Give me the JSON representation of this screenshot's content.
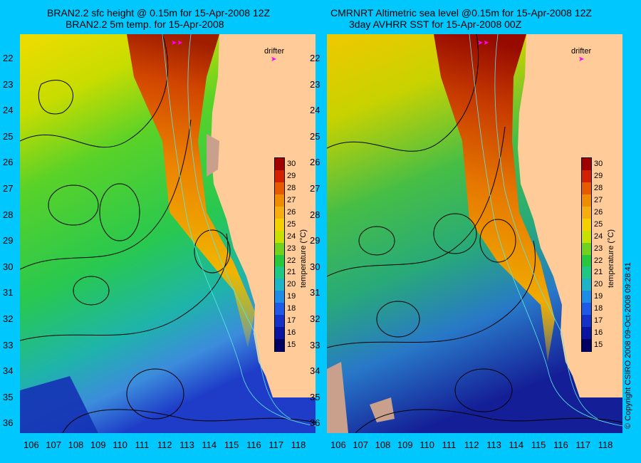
{
  "left_panel": {
    "title_line1": "BRAN2.2 sfc height @ 0.15m for 15-Apr-2008 12Z",
    "title_line2": "BRAN2.2 5m temp. for 15-Apr-2008",
    "drifter_label": "drifter"
  },
  "right_panel": {
    "title_line1": "CMRNRT Altimetric sea level  @0.15m  for 15-Apr-2008 12Z",
    "title_line2": "3day AVHRR SST for 15-Apr-2008 00Z",
    "drifter_label": "drifter"
  },
  "x_ticks": [
    "106",
    "107",
    "108",
    "109",
    "110",
    "111",
    "112",
    "113",
    "114",
    "115",
    "116",
    "117",
    "118"
  ],
  "y_ticks": [
    "22",
    "23",
    "24",
    "25",
    "26",
    "27",
    "28",
    "29",
    "30",
    "31",
    "32",
    "33",
    "34",
    "35",
    "36"
  ],
  "colorbar": {
    "labels": [
      "30",
      "29",
      "28",
      "27",
      "26",
      "25",
      "24",
      "23",
      "22",
      "21",
      "20",
      "19",
      "18",
      "17",
      "16",
      "15"
    ],
    "axis_label": "temperature (°C)",
    "colors": [
      "#a00000",
      "#d22000",
      "#e85a00",
      "#f08c00",
      "#f5ad10",
      "#f4d000",
      "#c8e000",
      "#70d21e",
      "#28c83c",
      "#1ec882",
      "#1eb4c8",
      "#1e8ce6",
      "#1e5ae6",
      "#1432c8",
      "#0a14a0",
      "#000064"
    ]
  },
  "land_color": "#ffcc99",
  "background_color": "#00c8ff",
  "copyright": "© Copyright CSIRO 2008   09-Oct-2008 09:28:41"
}
